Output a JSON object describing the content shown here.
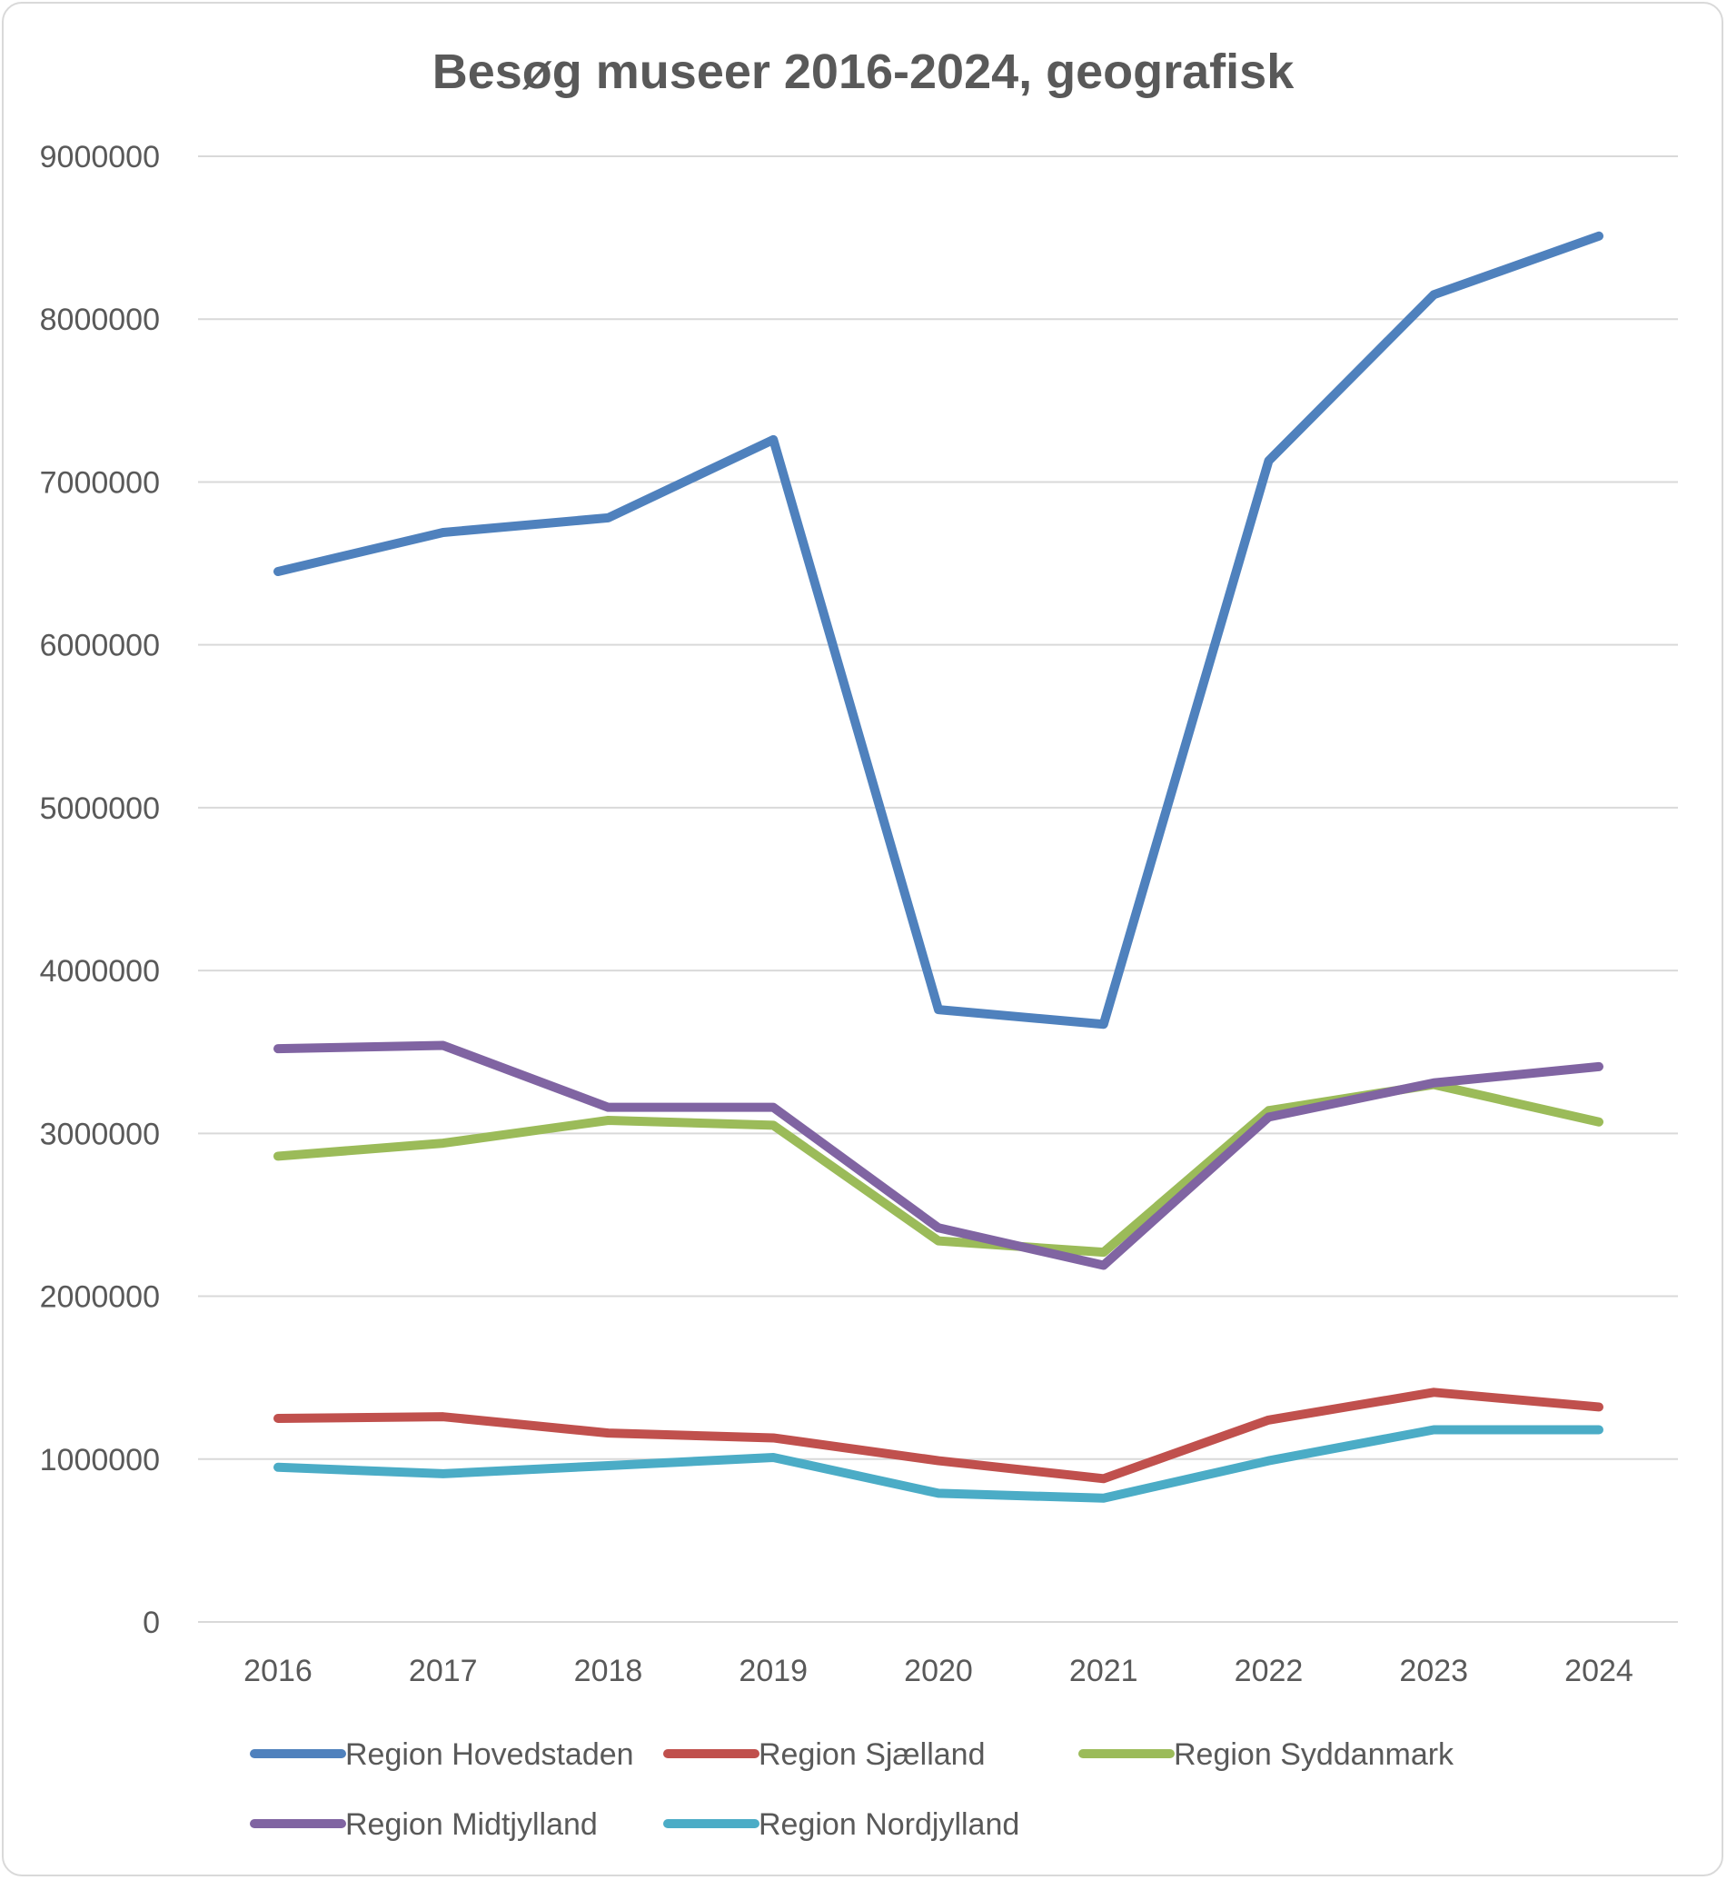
{
  "chart_data": {
    "type": "line",
    "title": "Besøg museer 2016-2024, geografisk",
    "xlabel": "",
    "ylabel": "",
    "categories": [
      "2016",
      "2017",
      "2018",
      "2019",
      "2020",
      "2021",
      "2022",
      "2023",
      "2024"
    ],
    "ylim": [
      0,
      9000000
    ],
    "yticks": [
      "0",
      "1000000",
      "2000000",
      "3000000",
      "4000000",
      "5000000",
      "6000000",
      "7000000",
      "8000000",
      "9000000"
    ],
    "grid": true,
    "legend_position": "bottom",
    "series": [
      {
        "name": "Region Hovedstaden",
        "color": "#4f81bd",
        "values": [
          6450000,
          6690000,
          6780000,
          7260000,
          3760000,
          3670000,
          7130000,
          8150000,
          8510000
        ]
      },
      {
        "name": "Region Sjælland",
        "color": "#c0504d",
        "values": [
          1250000,
          1260000,
          1160000,
          1130000,
          990000,
          880000,
          1240000,
          1410000,
          1320000
        ]
      },
      {
        "name": "Region Syddanmark",
        "color": "#9bbb59",
        "values": [
          2860000,
          2940000,
          3080000,
          3050000,
          2340000,
          2270000,
          3140000,
          3300000,
          3070000
        ]
      },
      {
        "name": "Region Midtjylland",
        "color": "#8064a2",
        "values": [
          3520000,
          3540000,
          3160000,
          3160000,
          2420000,
          2190000,
          3100000,
          3310000,
          3410000
        ]
      },
      {
        "name": "Region Nordjylland",
        "color": "#4bacc6",
        "values": [
          950000,
          910000,
          960000,
          1010000,
          790000,
          760000,
          990000,
          1180000,
          1180000
        ]
      }
    ]
  }
}
